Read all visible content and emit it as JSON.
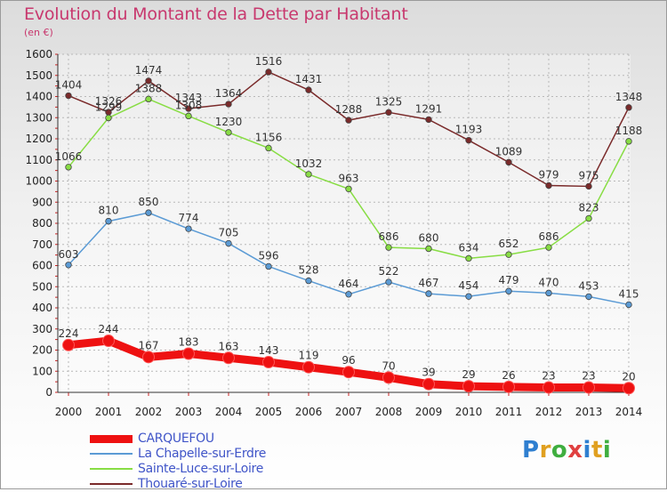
{
  "chart_data": {
    "type": "line",
    "title": "Evolution du Montant de la Dette par Habitant",
    "subtitle": "(en €)",
    "categories": [
      "2000",
      "2001",
      "2002",
      "2003",
      "2004",
      "2005",
      "2006",
      "2007",
      "2008",
      "2009",
      "2010",
      "2011",
      "2012",
      "2013",
      "2014"
    ],
    "ylim": [
      0,
      1600
    ],
    "yticks": [
      0,
      100,
      200,
      300,
      400,
      500,
      600,
      700,
      800,
      900,
      1000,
      1100,
      1200,
      1300,
      1400,
      1500,
      1600
    ],
    "grid": true,
    "legend_position": "bottom-left",
    "series": [
      {
        "name": "CARQUEFOU",
        "color": "#ee1111",
        "values": [
          224,
          244,
          167,
          183,
          163,
          143,
          119,
          96,
          70,
          39,
          29,
          26,
          23,
          23,
          20
        ]
      },
      {
        "name": "La Chapelle-sur-Erdre",
        "color": "#5b9bd5",
        "values": [
          603,
          810,
          850,
          774,
          705,
          596,
          528,
          464,
          522,
          467,
          454,
          479,
          470,
          453,
          415
        ]
      },
      {
        "name": "Sainte-Luce-sur-Loire",
        "color": "#88dd44",
        "values": [
          1066,
          1299,
          1388,
          1308,
          1230,
          1156,
          1032,
          963,
          686,
          680,
          634,
          652,
          686,
          823,
          1188
        ]
      },
      {
        "name": "Thouaré-sur-Loire",
        "color": "#7a2a2a",
        "values": [
          1404,
          1326,
          1474,
          1343,
          1364,
          1516,
          1431,
          1288,
          1325,
          1291,
          1193,
          1089,
          979,
          975,
          1348
        ]
      }
    ]
  },
  "logo": {
    "letters": [
      {
        "ch": "P",
        "color": "#2f7fd0"
      },
      {
        "ch": "r",
        "color": "#e0a020"
      },
      {
        "ch": "o",
        "color": "#3fae3f"
      },
      {
        "ch": "x",
        "color": "#e04040"
      },
      {
        "ch": "i",
        "color": "#2f7fd0"
      },
      {
        "ch": "t",
        "color": "#e0a020"
      },
      {
        "ch": "i",
        "color": "#3fae3f"
      }
    ]
  }
}
